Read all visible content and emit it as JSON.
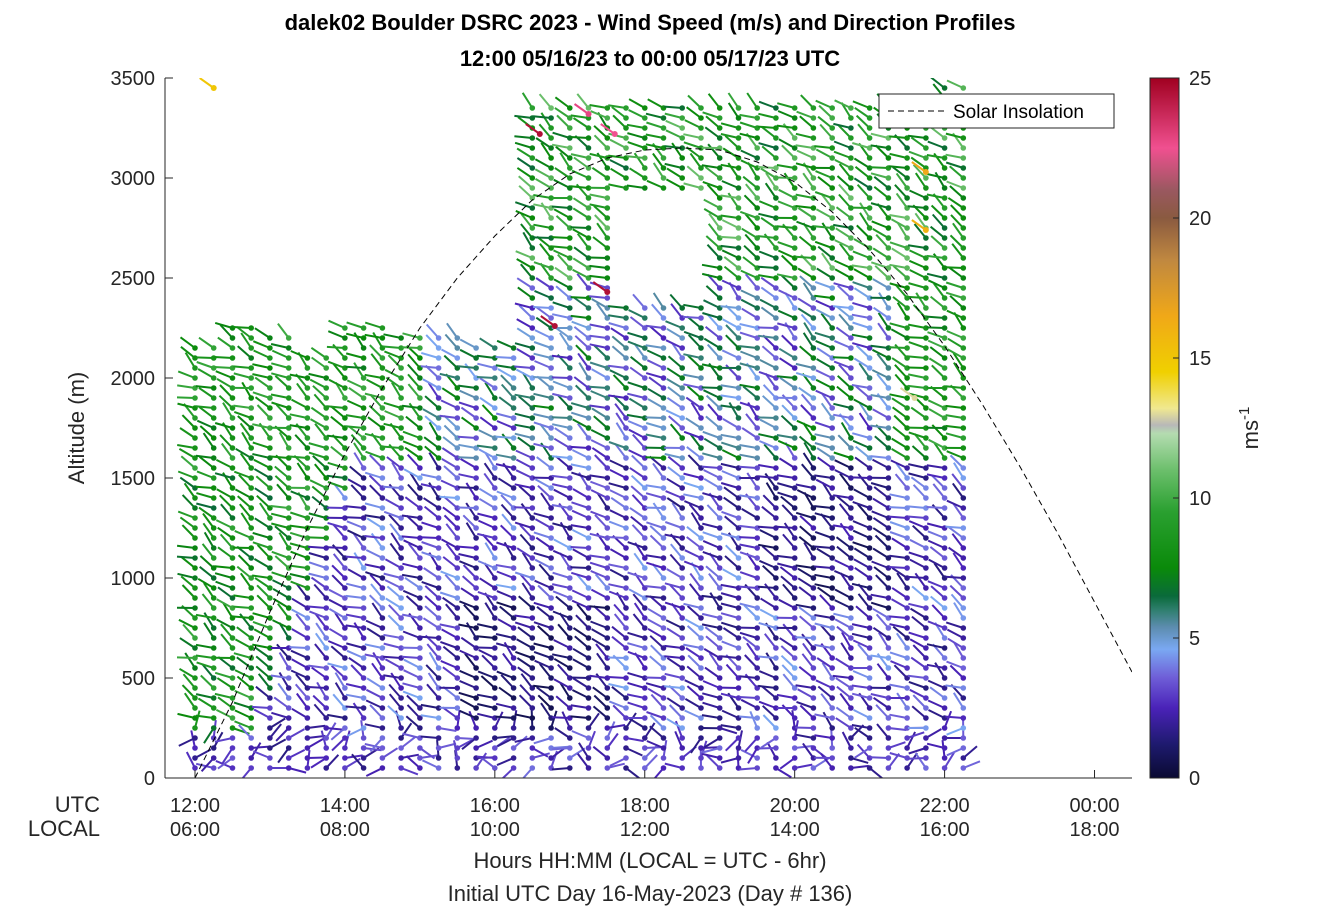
{
  "chart_data": {
    "type": "wind_barb_profile",
    "title_line1": "dalek02 Boulder DSRC 2023 - Wind Speed (m/s) and Direction Profiles",
    "title_line2": "12:00 05/16/23 to 00:00 05/17/23  UTC",
    "ylabel": "Altitude (m)",
    "xlabel": "Hours HH:MM  (LOCAL = UTC - 6hr)",
    "xlabel2": "Initial UTC Day 16-May-2023 (Day # 136)",
    "x_row_labels": [
      "UTC",
      "LOCAL"
    ],
    "xlim_hours_utc": [
      11.6,
      24.5
    ],
    "ylim": [
      0,
      3500
    ],
    "y_ticks": [
      0,
      500,
      1000,
      1500,
      2000,
      2500,
      3000,
      3500
    ],
    "y_tick_labels": [
      "0",
      "500",
      "1000",
      "1500",
      "2000",
      "2500",
      "3000",
      "3500"
    ],
    "x_ticks_hours_utc": [
      12,
      14,
      16,
      18,
      20,
      22,
      24
    ],
    "x_tick_labels_utc": [
      "12:00",
      "14:00",
      "16:00",
      "18:00",
      "20:00",
      "22:00",
      "00:00"
    ],
    "x_tick_labels_local": [
      "06:00",
      "08:00",
      "10:00",
      "12:00",
      "14:00",
      "16:00",
      "18:00"
    ],
    "legend": {
      "label": "Solar Insolation",
      "position": "top-right"
    },
    "colorbar": {
      "label": "ms",
      "label_sup": "-1",
      "range": [
        0,
        25
      ],
      "ticks": [
        0,
        5,
        10,
        15,
        20,
        25
      ],
      "tick_labels": [
        "0",
        "5",
        "10",
        "15",
        "20",
        "25"
      ],
      "stops": [
        {
          "v": 0,
          "c": "#0a0a32"
        },
        {
          "v": 1.2,
          "c": "#1e1a6e"
        },
        {
          "v": 2.5,
          "c": "#4a22b8"
        },
        {
          "v": 3.6,
          "c": "#6f5fd8"
        },
        {
          "v": 4.6,
          "c": "#7aa8f2"
        },
        {
          "v": 5.4,
          "c": "#5c8cae"
        },
        {
          "v": 6.0,
          "c": "#2f7f6e"
        },
        {
          "v": 6.5,
          "c": "#0a6a3a"
        },
        {
          "v": 7.5,
          "c": "#0a8a0a"
        },
        {
          "v": 9.5,
          "c": "#2aa030"
        },
        {
          "v": 11.0,
          "c": "#6cbf6c"
        },
        {
          "v": 12.3,
          "c": "#b4dcb0"
        },
        {
          "v": 12.6,
          "c": "#b8b8b8"
        },
        {
          "v": 13.2,
          "c": "#f0e890"
        },
        {
          "v": 14.5,
          "c": "#f0d000"
        },
        {
          "v": 16.5,
          "c": "#f0a818"
        },
        {
          "v": 18.5,
          "c": "#c08840"
        },
        {
          "v": 20.0,
          "c": "#8a5a40"
        },
        {
          "v": 21.0,
          "c": "#9a5860"
        },
        {
          "v": 22.5,
          "c": "#f05090"
        },
        {
          "v": 25,
          "c": "#a00020"
        }
      ]
    },
    "solar_insolation_curve": [
      [
        11.6,
        0
      ],
      [
        12.0,
        0
      ],
      [
        12.5,
        380
      ],
      [
        13.0,
        830
      ],
      [
        13.5,
        1250
      ],
      [
        14.0,
        1620
      ],
      [
        14.5,
        1950
      ],
      [
        15.0,
        2250
      ],
      [
        15.5,
        2500
      ],
      [
        16.0,
        2710
      ],
      [
        16.5,
        2890
      ],
      [
        17.0,
        3020
      ],
      [
        17.5,
        3100
      ],
      [
        18.0,
        3140
      ],
      [
        18.5,
        3150
      ],
      [
        19.0,
        3140
      ],
      [
        19.5,
        3080
      ],
      [
        20.0,
        2980
      ],
      [
        20.5,
        2830
      ],
      [
        21.0,
        2640
      ],
      [
        21.5,
        2420
      ],
      [
        22.0,
        2160
      ],
      [
        22.5,
        1870
      ],
      [
        23.0,
        1560
      ],
      [
        23.5,
        1230
      ],
      [
        24.0,
        880
      ],
      [
        24.5,
        530
      ]
    ],
    "profiles": {
      "time_step_hours": 0.25,
      "start_hour_utc": 12.0,
      "end_hour_utc": 22.25,
      "levels_m_lower": [
        50,
        100,
        150,
        200,
        250,
        300,
        350,
        400,
        450,
        500,
        550,
        600,
        650,
        700,
        750,
        800,
        850,
        900,
        950,
        1000,
        1050,
        1100,
        1150,
        1200,
        1250,
        1300,
        1350,
        1400,
        1450,
        1500
      ],
      "levels_m_upper": [
        1550,
        1600,
        1650,
        1700,
        1750,
        1800,
        1850,
        1900,
        1950,
        2000,
        2050,
        2100,
        2150,
        2200,
        2250,
        2300,
        2350,
        2400,
        2450,
        2500,
        2550,
        2600,
        2650,
        2700,
        2750,
        2800,
        2850,
        2900,
        2950,
        3000,
        3050,
        3100,
        3150,
        3200,
        3250,
        3300,
        3350,
        3400,
        3450,
        3500
      ]
    }
  }
}
